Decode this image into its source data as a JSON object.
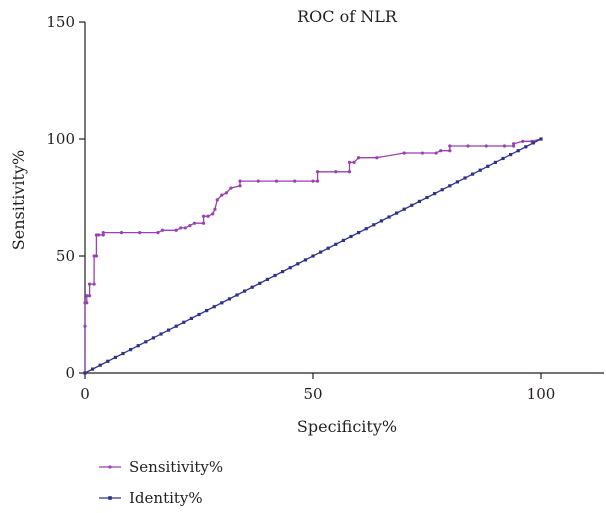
{
  "chart_data": {
    "type": "line",
    "title": "ROC of NLR",
    "xlabel": "Specificity%",
    "ylabel": "Sensitivity%",
    "xlim": [
      0,
      115
    ],
    "ylim": [
      0,
      150
    ],
    "x_ticks": [
      0,
      50,
      100
    ],
    "y_ticks": [
      0,
      50,
      100,
      150
    ],
    "x_tick_labels": [
      "0",
      "50",
      "100"
    ],
    "y_tick_labels": [
      "0",
      "50",
      "100",
      "150"
    ],
    "grid": false,
    "legend_position": "bottom-left",
    "series": [
      {
        "name": "Sensitivity%",
        "color": "#9b3fb5",
        "x": [
          0,
          0,
          0,
          0.4,
          0.4,
          1,
          1,
          2,
          2,
          2.5,
          2.5,
          3,
          4,
          4,
          8,
          12,
          16,
          17,
          20,
          21,
          22,
          23,
          24,
          26,
          26,
          27,
          28,
          28.5,
          29,
          30,
          31,
          32,
          34,
          34,
          38,
          42,
          46,
          50,
          51,
          51,
          55,
          58,
          58,
          59,
          60,
          64,
          70,
          70,
          74,
          77,
          78,
          80,
          80,
          84,
          88,
          92,
          94,
          94,
          96,
          98,
          100
        ],
        "values": [
          0,
          20,
          30,
          30,
          33,
          33,
          38,
          38,
          50,
          50,
          59,
          59,
          59,
          60,
          60,
          60,
          60,
          61,
          61,
          62,
          62,
          63,
          64,
          64,
          67,
          67,
          68,
          70,
          74,
          76,
          77,
          79,
          80,
          82,
          82,
          82,
          82,
          82,
          82,
          86,
          86,
          86,
          90,
          90,
          92,
          92,
          94,
          94,
          94,
          94,
          95,
          95,
          97,
          97,
          97,
          97,
          97,
          98,
          99,
          99,
          100
        ]
      },
      {
        "name": "Identity%",
        "color": "#2e3192",
        "x": [
          0,
          100
        ],
        "values": [
          0,
          100
        ]
      }
    ]
  }
}
